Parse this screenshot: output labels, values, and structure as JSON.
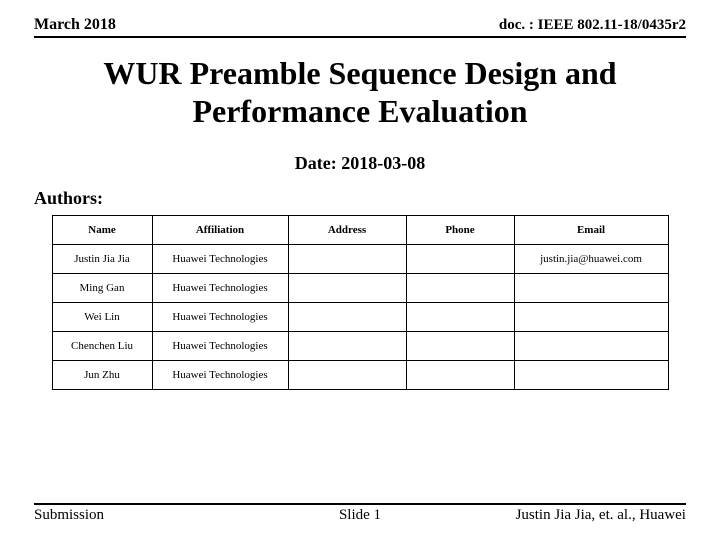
{
  "header": {
    "left": "March 2018",
    "right": "doc. : IEEE 802.11-18/0435r2"
  },
  "title_line1": "WUR Preamble Sequence Design and",
  "title_line2": "Performance Evaluation",
  "date_prefix": "Date:",
  "date_value": "2018-03-08",
  "authors_label": "Authors:",
  "table": {
    "columns": [
      "Name",
      "Affiliation",
      "Address",
      "Phone",
      "Email"
    ],
    "rows": [
      [
        "Justin Jia Jia",
        "Huawei Technologies",
        "",
        "",
        "justin.jia@huawei.com"
      ],
      [
        "Ming Gan",
        "Huawei Technologies",
        "",
        "",
        ""
      ],
      [
        "Wei Lin",
        "Huawei Technologies",
        "",
        "",
        ""
      ],
      [
        "Chenchen Liu",
        "Huawei Technologies",
        "",
        "",
        ""
      ],
      [
        "Jun Zhu",
        "Huawei Technologies",
        "",
        "",
        ""
      ]
    ],
    "border_color": "#000000",
    "header_fontsize": 11,
    "cell_fontsize": 11
  },
  "footer": {
    "left": "Submission",
    "middle": "Slide 1",
    "right": "Justin Jia Jia, et. al., Huawei"
  },
  "colors": {
    "background": "#ffffff",
    "text": "#000000",
    "rule": "#000000"
  }
}
